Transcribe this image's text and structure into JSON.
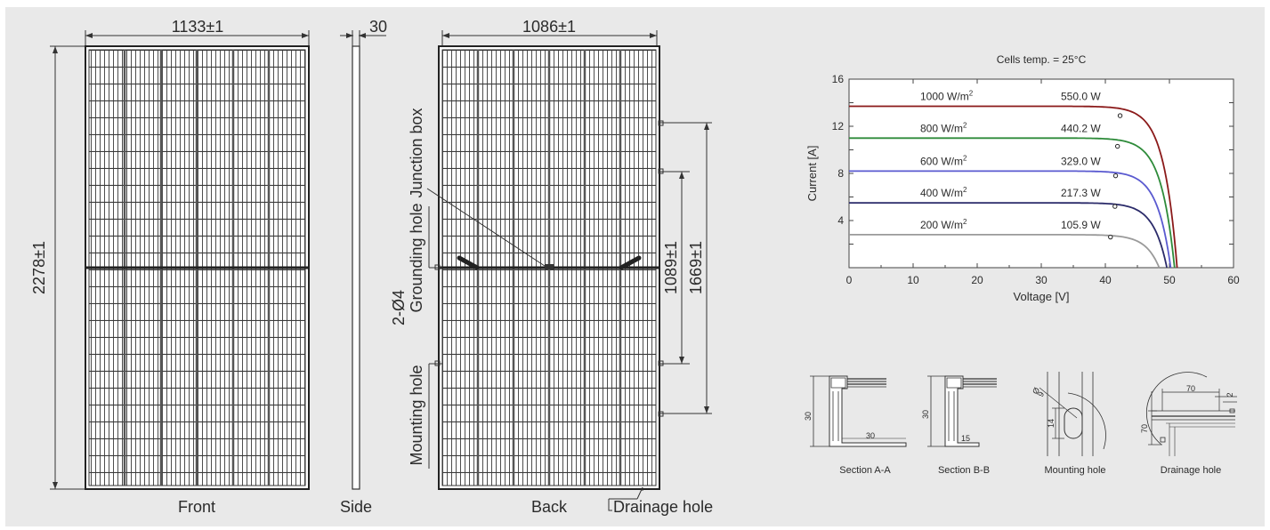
{
  "front": {
    "width_dim": "1133±1",
    "height_dim": "2278±1",
    "label": "Front"
  },
  "side": {
    "thickness_dim": "30",
    "label": "Side"
  },
  "back": {
    "width_dim": "1086±1",
    "dim_1089": "1089±1",
    "dim_1669": "1669±1",
    "label": "Back",
    "junction_box": "Junction box",
    "grounding_hole": "Grounding hole",
    "grounding_count": "2-Ø4",
    "mounting_hole": "Mounting hole",
    "drainage_hole": "Drainage hole"
  },
  "chart_data": {
    "type": "line",
    "title": "Cells temp. = 25°C",
    "xlabel": "Voltage [V]",
    "ylabel": "Current [A]",
    "xlim": [
      0,
      60
    ],
    "ylim": [
      0,
      16
    ],
    "x_ticks": [
      0,
      10,
      20,
      30,
      40,
      50,
      60
    ],
    "y_ticks": [
      4,
      8,
      12,
      16
    ],
    "series": [
      {
        "name": "1000 W/m²",
        "irr_label": "1000 W/m",
        "power": "550.0 W",
        "color": "#8b1a1a",
        "isc": 13.7,
        "voc": 51.2,
        "mpp": [
          42.3,
          12.9
        ]
      },
      {
        "name": "800 W/m²",
        "irr_label": "800 W/m",
        "power": "440.2 W",
        "color": "#2e8b3a",
        "isc": 11.0,
        "voc": 50.8,
        "mpp": [
          41.9,
          10.3
        ]
      },
      {
        "name": "600 W/m²",
        "irr_label": "600 W/m",
        "power": "329.0 W",
        "color": "#5a5ad0",
        "isc": 8.2,
        "voc": 50.2,
        "mpp": [
          41.6,
          7.8
        ]
      },
      {
        "name": "400 W/m²",
        "irr_label": "400 W/m",
        "power": "217.3 W",
        "color": "#2b2b6a",
        "isc": 5.5,
        "voc": 49.6,
        "mpp": [
          41.5,
          5.2
        ]
      },
      {
        "name": "200 W/m²",
        "irr_label": "200 W/m",
        "power": "105.9 W",
        "color": "#9a9a9a",
        "isc": 2.8,
        "voc": 48.4,
        "mpp": [
          40.8,
          2.6
        ]
      }
    ]
  },
  "sections": {
    "a_label": "Section A-A",
    "a_h": "30",
    "a_w": "30",
    "b_label": "Section B-B",
    "b_h": "30",
    "b_w": "15",
    "mount_label": "Mounting hole",
    "mount_d": "Ø",
    "mount_d2": "9",
    "mount_h": "14",
    "drain_label": "Drainage hole",
    "drain_w": "70",
    "drain_h": "70",
    "drain_s": "2"
  }
}
